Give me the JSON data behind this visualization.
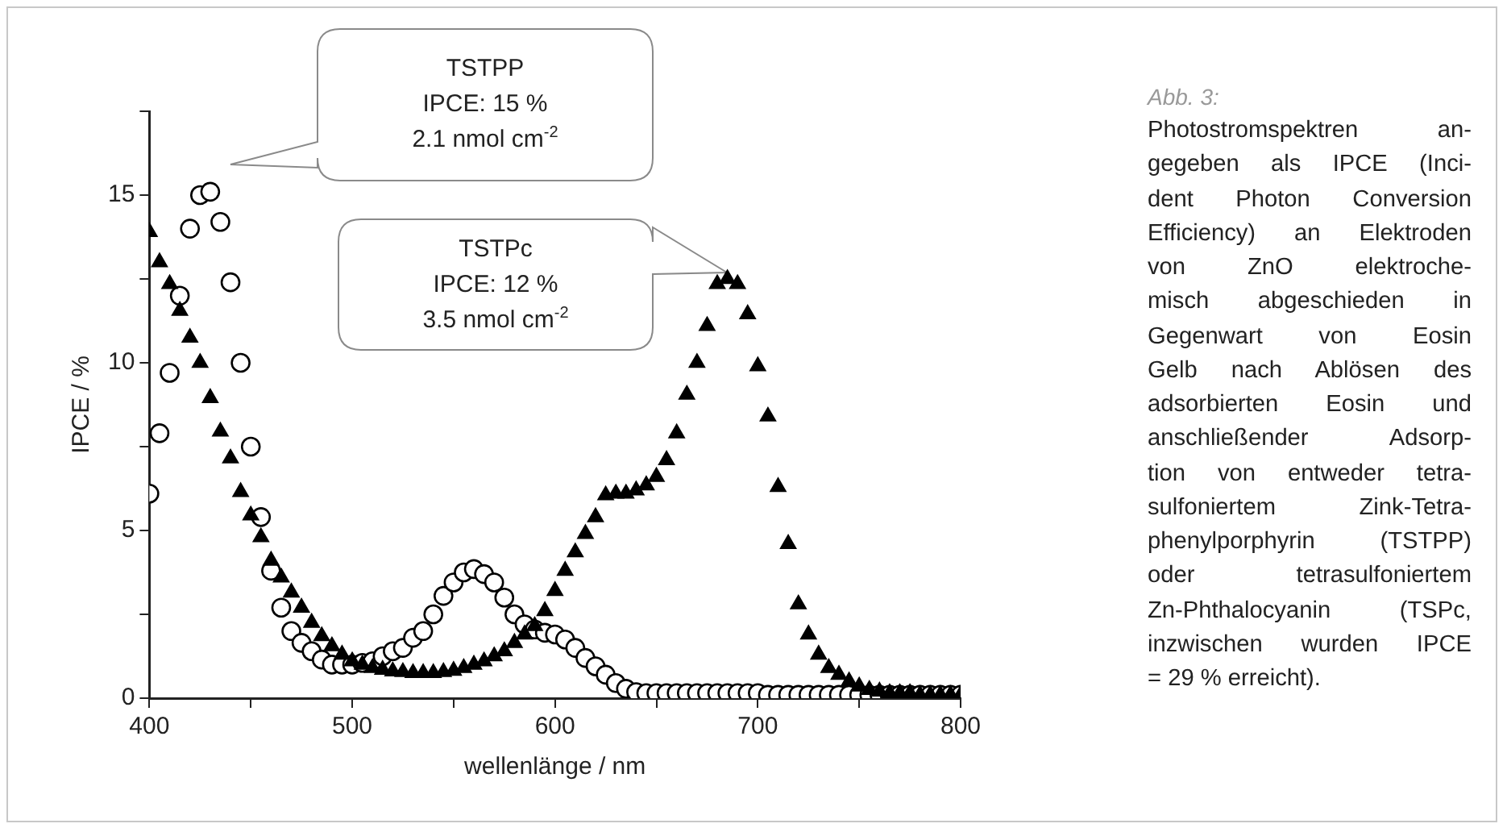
{
  "chart_data": {
    "type": "scatter",
    "xlabel": "wellenlänge / nm",
    "ylabel": "IPCE / %",
    "x": [
      400,
      405,
      410,
      415,
      420,
      425,
      430,
      435,
      440,
      445,
      450,
      455,
      460,
      465,
      470,
      475,
      480,
      485,
      490,
      495,
      500,
      505,
      510,
      515,
      520,
      525,
      530,
      535,
      540,
      545,
      550,
      555,
      560,
      565,
      570,
      575,
      580,
      585,
      590,
      595,
      600,
      605,
      610,
      615,
      620,
      625,
      630,
      635,
      640,
      645,
      650,
      655,
      660,
      665,
      670,
      675,
      680,
      685,
      690,
      695,
      700,
      705,
      710,
      715,
      720,
      725,
      730,
      735,
      740,
      745,
      750,
      755,
      760,
      765,
      770,
      775,
      780,
      785,
      790,
      795,
      800
    ],
    "series": [
      {
        "color": "#000000",
        "marker": "triangle",
        "values": [
          13.9,
          13.0,
          12.35,
          11.55,
          10.75,
          10.0,
          8.95,
          7.95,
          7.15,
          6.15,
          5.45,
          4.8,
          4.1,
          3.6,
          3.15,
          2.7,
          2.25,
          1.85,
          1.55,
          1.3,
          1.1,
          1.0,
          0.9,
          0.85,
          0.8,
          0.78,
          0.75,
          0.75,
          0.75,
          0.78,
          0.82,
          0.9,
          1.0,
          1.1,
          1.25,
          1.4,
          1.65,
          1.9,
          2.15,
          2.6,
          3.2,
          3.8,
          4.35,
          4.9,
          5.4,
          6.05,
          6.1,
          6.1,
          6.2,
          6.35,
          6.6,
          7.1,
          7.9,
          9.05,
          10.0,
          11.1,
          12.35,
          12.5,
          12.35,
          11.45,
          9.9,
          8.4,
          6.3,
          4.6,
          2.8,
          1.9,
          1.3,
          0.9,
          0.7,
          0.5,
          0.35,
          0.25,
          0.2,
          0.15,
          0.15,
          0.15,
          0.1,
          0.1,
          0.1,
          0.1,
          0.1
        ]
      },
      {
        "color": "#000000",
        "marker": "circle",
        "values": [
          6.1,
          7.9,
          9.7,
          12.0,
          14.0,
          15.0,
          15.1,
          14.2,
          12.4,
          10.0,
          7.5,
          5.4,
          3.8,
          2.7,
          2.0,
          1.65,
          1.4,
          1.15,
          1.0,
          1.0,
          1.0,
          1.05,
          1.1,
          1.25,
          1.4,
          1.5,
          1.8,
          2.0,
          2.5,
          3.05,
          3.45,
          3.75,
          3.85,
          3.7,
          3.45,
          3.0,
          2.5,
          2.2,
          2.05,
          1.95,
          1.9,
          1.75,
          1.5,
          1.2,
          0.95,
          0.7,
          0.45,
          0.28,
          0.18,
          0.15,
          0.15,
          0.15,
          0.15,
          0.15,
          0.15,
          0.15,
          0.15,
          0.15,
          0.15,
          0.15,
          0.15,
          0.1,
          0.1,
          0.1,
          0.1,
          0.1,
          0.1,
          0.1,
          0.1,
          0.1,
          0.1,
          0.1,
          0.1,
          0.1,
          0.1,
          0.1,
          0.1,
          0.1,
          0.1,
          0.1,
          0.1
        ]
      }
    ],
    "xlim": [
      400,
      800
    ],
    "xticks": [
      400,
      {
        "value": 450,
        "label": null
      },
      500,
      {
        "value": 550,
        "label": null
      },
      600,
      {
        "value": 650,
        "label": null
      },
      700,
      {
        "value": 750,
        "label": null
      },
      800
    ],
    "ylim": [
      0,
      17.5
    ],
    "yticks": [
      0,
      {
        "value": 2.5,
        "label": null
      },
      5,
      {
        "value": 7.5,
        "label": null
      },
      10,
      {
        "value": 12.5,
        "label": null
      },
      15,
      {
        "value": 17.5,
        "label": null
      }
    ],
    "grid": false,
    "legend": false,
    "annotations": [
      "TSTPP\nIPCE: 15 %\n2.1 nmol cm$^{-2}$",
      "TSTPc\nIPCE: 12 %\n3.5 nmol cm$^{-2}$",
      "Abb. 3:",
      "Photostromspektren an-\ngegeben als IPCE (Inci-\ndent Photon Conversion\nEfficiency) an Elektroden\nvon ZnO elektroche-\nmisch abgeschieden in\nGegenwart von Eosin\nGelb nach Ablösen des\nadsorbierten Eosin und\nanschließender Adsorp-\ntion von entweder tetra-\nsulfoniertem Zink-Tetra-\nphenylporphyrin (TSTPP)\noder tetrasulfoniertem\nZn-Phthalocyanin (TSPc,\ninzwischen wurden IPCE\n= 29 % erreicht)."
    ]
  }
}
